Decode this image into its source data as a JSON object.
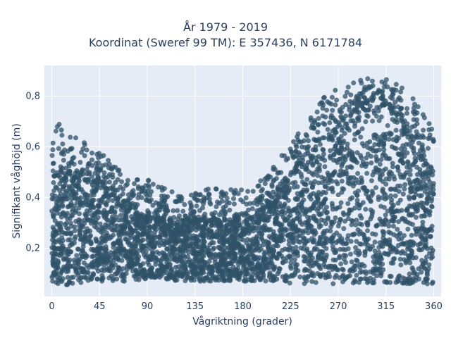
{
  "chart_data": {
    "type": "scatter",
    "title_line1": "År 1979 - 2019",
    "title_line2": "Koordinat (Sweref 99 TM): E 357436, N 6171784",
    "xlabel": "Vågriktning (grader)",
    "ylabel": "Signifikant våghöjd (m)",
    "xlim": [
      -7,
      367
    ],
    "ylim": [
      0.01,
      0.92
    ],
    "x_ticks": [
      0,
      45,
      90,
      135,
      180,
      225,
      270,
      315,
      360
    ],
    "x_tick_labels": [
      "0",
      "45",
      "90",
      "135",
      "180",
      "225",
      "270",
      "315",
      "360"
    ],
    "y_ticks": [
      0.2,
      0.4,
      0.6,
      0.8
    ],
    "y_tick_labels": [
      "0,2",
      "0,4",
      "0,6",
      "0,8"
    ],
    "grid": true,
    "background_color": "#e5ecf6",
    "marker_color": "#2f5168",
    "envelope": {
      "x": [
        0,
        10,
        20,
        30,
        45,
        60,
        75,
        90,
        105,
        120,
        135,
        150,
        165,
        180,
        195,
        210,
        225,
        240,
        255,
        270,
        285,
        300,
        315,
        330,
        345,
        360
      ],
      "y_min": [
        0.06,
        0.05,
        0.06,
        0.06,
        0.07,
        0.07,
        0.07,
        0.08,
        0.08,
        0.07,
        0.07,
        0.07,
        0.07,
        0.07,
        0.07,
        0.07,
        0.06,
        0.06,
        0.06,
        0.06,
        0.06,
        0.06,
        0.06,
        0.06,
        0.06,
        0.06
      ],
      "y_max": [
        0.66,
        0.72,
        0.64,
        0.62,
        0.58,
        0.53,
        0.51,
        0.47,
        0.44,
        0.42,
        0.44,
        0.45,
        0.44,
        0.43,
        0.46,
        0.53,
        0.61,
        0.7,
        0.79,
        0.83,
        0.86,
        0.87,
        0.87,
        0.84,
        0.77,
        0.67
      ],
      "y_dense_top": [
        0.46,
        0.5,
        0.48,
        0.47,
        0.45,
        0.4,
        0.36,
        0.33,
        0.31,
        0.3,
        0.31,
        0.31,
        0.31,
        0.31,
        0.33,
        0.4,
        0.48,
        0.56,
        0.62,
        0.68,
        0.74,
        0.78,
        0.76,
        0.7,
        0.6,
        0.5
      ]
    }
  }
}
